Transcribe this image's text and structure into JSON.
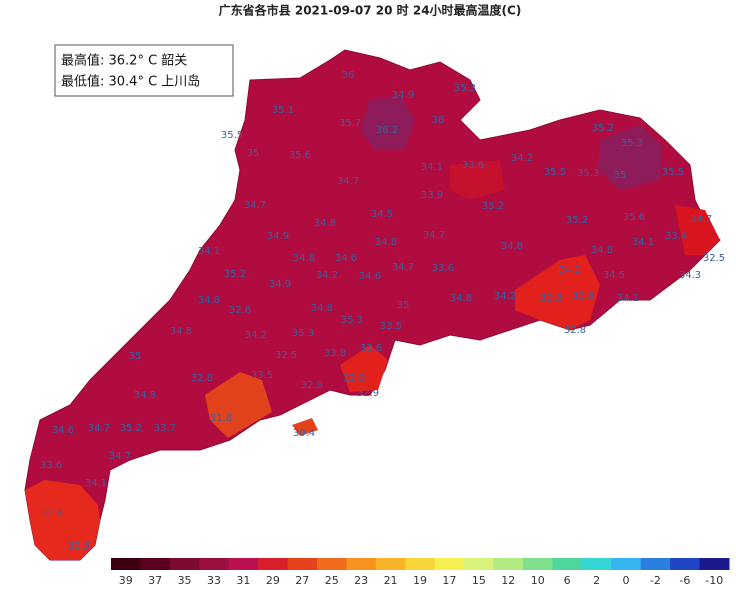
{
  "title": "广东省各市县 2021-09-07 20 时 24小时最高温度(C)",
  "info": {
    "max": "最高值: 36.2° C 韶关",
    "min": "最低值: 30.4° C 上川岛"
  },
  "stations": [
    "36",
    "35.1",
    "34.9",
    "35.3",
    "35.7",
    "36.2",
    "36",
    "35.5",
    "35",
    "35.6",
    "34.1",
    "33.6",
    "34.2",
    "35.2",
    "35.3",
    "35.5",
    "35.3",
    "35",
    "35.5",
    "34.7",
    "33.9",
    "34.7",
    "35.2",
    "34.5",
    "35.2",
    "35.6",
    "34.7",
    "34.9",
    "34.8",
    "34.7",
    "34.8",
    "34.1",
    "33.4",
    "32.5",
    "34.8",
    "34.1",
    "35.2",
    "34.8",
    "34.2",
    "34.6",
    "34.6",
    "34.7",
    "33.6",
    "34.5",
    "34.3",
    "34.8",
    "34.2",
    "34.9",
    "34.8",
    "34.8",
    "35",
    "34.8",
    "34.2",
    "32.8",
    "32.6",
    "34.1",
    "32.6",
    "35.3",
    "33.5",
    "32.8",
    "34.8",
    "34.2",
    "35.3",
    "35",
    "32.5",
    "33.8",
    "33.6",
    "33.5",
    "32.8",
    "32.8",
    "32.9",
    "32.9",
    "34.8",
    "31.8",
    "30.4",
    "34.6",
    "34.7",
    "35.2",
    "33.7",
    "34.7",
    "33.6",
    "34.1",
    "32.4",
    "32.5"
  ],
  "colorbar": {
    "labels": [
      39,
      37,
      35,
      33,
      31,
      29,
      27,
      25,
      23,
      21,
      19,
      17,
      15,
      12,
      10,
      6,
      2,
      0,
      -2,
      -6,
      -10
    ],
    "colors": [
      "#3d0011",
      "#5c0020",
      "#7d0a2f",
      "#9c0d40",
      "#bb1050",
      "#d81f2a",
      "#e6421c",
      "#f26b1d",
      "#f7931e",
      "#f9b529",
      "#fad53a",
      "#f5ef52",
      "#d9f27a",
      "#b2eb82",
      "#7ee08a",
      "#4fd69e",
      "#35d7d4",
      "#35b5ef",
      "#2b7fe0",
      "#2046c8",
      "#1a1a8c"
    ]
  }
}
